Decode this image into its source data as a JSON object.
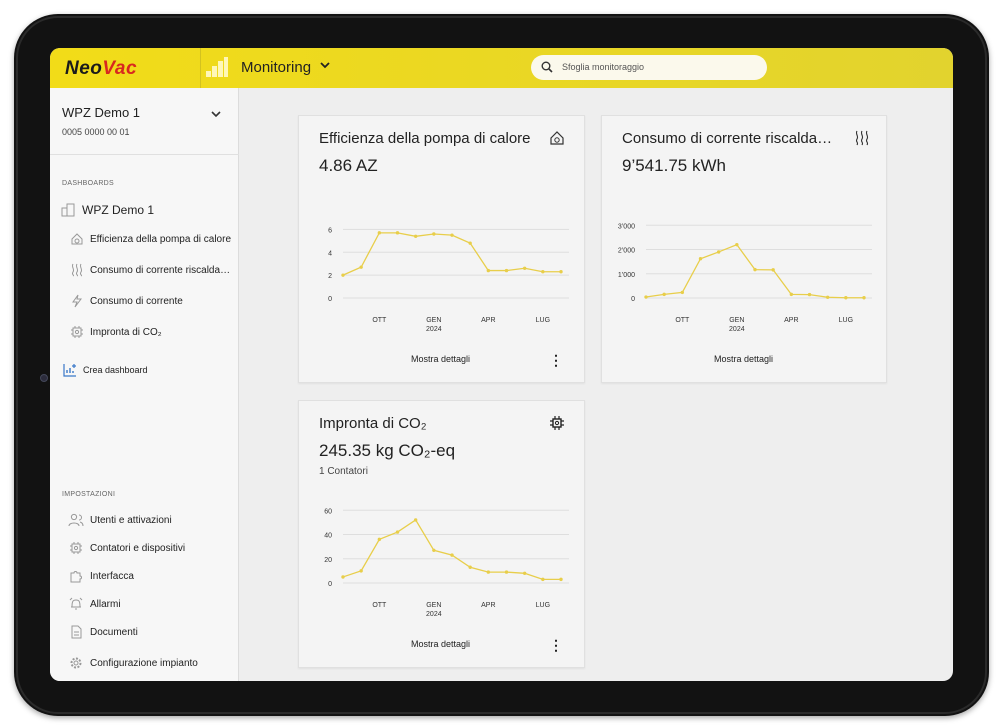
{
  "app": {
    "logo_neo": "Neo",
    "logo_vac": "Vac",
    "title": "Monitoring",
    "search_placeholder": "Sfoglia monitoraggio"
  },
  "sidebar": {
    "site_name": "WPZ Demo 1",
    "site_id": "0005 0000 00 01",
    "dashboards_label": "DASHBOARDS",
    "dashboard_root": "WPZ Demo 1",
    "dashboard_items": [
      {
        "label": "Efficienza della pompa di calore",
        "icon": "heat-pump-icon"
      },
      {
        "label": "Consumo di corrente riscaldamento",
        "icon": "heating-icon"
      },
      {
        "label": "Consumo di corrente",
        "icon": "lightning-icon"
      },
      {
        "label": "Impronta di CO₂",
        "icon": "chip-icon"
      }
    ],
    "create_dashboard": "Crea dashboard",
    "settings_label": "IMPOSTAZIONI",
    "settings_items": [
      {
        "label": "Utenti e attivazioni",
        "icon": "users-icon"
      },
      {
        "label": "Contatori e dispositivi",
        "icon": "meter-icon"
      },
      {
        "label": "Interfacca",
        "icon": "puzzle-icon"
      },
      {
        "label": "Allarmi",
        "icon": "alarm-icon"
      },
      {
        "label": "Documenti",
        "icon": "document-icon"
      },
      {
        "label": "Configurazione impianto",
        "icon": "gear-icon"
      }
    ]
  },
  "cards": [
    {
      "title": "Efficienza della pompa di calore",
      "value": "4.86 AZ",
      "subtitle": "",
      "details_label": "Mostra dettagli",
      "icon": "heat-pump-icon"
    },
    {
      "title": "Consumo di corrente riscaldamento",
      "value": "9’541.75 kWh",
      "subtitle": "",
      "details_label": "Mostra dettagli",
      "icon": "heating-icon"
    },
    {
      "title": "Impronta di CO₂",
      "value": "245.35 kg CO₂-eq",
      "subtitle": "1 Contatori",
      "details_label": "Mostra dettagli",
      "icon": "chip-icon"
    }
  ],
  "colors": {
    "accent": "#f0da1e",
    "line": "#e8ce4a",
    "brand_red": "#d8281f"
  },
  "chart_data": [
    {
      "type": "line",
      "title": "Efficienza della pompa di calore",
      "x_ticks": [
        "OTT",
        "GEN\n2024",
        "APR",
        "LUG"
      ],
      "y_ticks": [
        "0",
        "2",
        "4",
        "6"
      ],
      "ylim": [
        0,
        7
      ],
      "values": [
        2.0,
        2.7,
        5.7,
        5.7,
        5.4,
        5.6,
        5.5,
        4.8,
        2.4,
        2.4,
        2.6,
        2.3,
        2.3
      ],
      "grid": true
    },
    {
      "type": "line",
      "title": "Consumo di corrente riscaldamento",
      "x_ticks": [
        "OTT",
        "GEN\n2024",
        "APR",
        "LUG"
      ],
      "y_ticks": [
        "0",
        "1’000",
        "2’000",
        "3’000"
      ],
      "ylim": [
        0,
        3300
      ],
      "values": [
        40,
        150,
        230,
        1620,
        1900,
        2200,
        1170,
        1160,
        150,
        140,
        30,
        10,
        10
      ],
      "grid": true
    },
    {
      "type": "line",
      "title": "Impronta di CO₂",
      "x_ticks": [
        "OTT",
        "GEN\n2024",
        "APR",
        "LUG"
      ],
      "y_ticks": [
        "0",
        "20",
        "40",
        "60"
      ],
      "ylim": [
        0,
        66
      ],
      "values": [
        5,
        10,
        36,
        42,
        52,
        27,
        23,
        13,
        9,
        9,
        8,
        3,
        3
      ],
      "grid": true
    }
  ]
}
